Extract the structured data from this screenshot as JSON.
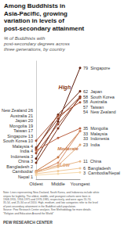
{
  "chart_data": {
    "type": "line",
    "title": "Among Buddhists in\nAsia-Pacific, growing\nvariation in levels of\npost-secondary attainment",
    "subtitle": "% of Buddhists with\npost-secondary degrees across\nthree generations, by country",
    "note": "Note: Lines representing New Zealand, South Korea, and Indonesia include white\nstripes for legibility. The oldest, middle, and youngest cohorts were born in\n1908-1955, 1956-1975 and 1976-1985, respectively, and were ages 55-74,\n35-54, and 25-34 as of 2010. High, medium, and low categories refer to the level\nof post-secondary attainment in the Buddhist adult population.\nSource: Pew Research Center analysis. See Methodology for more details.\n\"Religion and Education Around the World\"",
    "footer": "PEW RESEARCH CENTER",
    "categories": [
      "Oldest",
      "Middle",
      "Youngest"
    ],
    "ylim": [
      -2,
      84
    ],
    "tick_labels": "x",
    "marker": "circle",
    "series": [
      {
        "name": "Singapore",
        "color": "#5C1A08",
        "values": [
          13,
          40,
          79
        ],
        "value_labels": [
          "Singapore 13",
          null,
          "79  Singapore"
        ]
      },
      {
        "name": "Japan",
        "color": "#6B2610",
        "values": [
          20,
          45,
          62
        ],
        "value_labels": [
          "Japan 20",
          null,
          "62  Japan"
        ]
      },
      {
        "name": "South Korea",
        "color": "#7A3018",
        "values": [
          10,
          35,
          58
        ],
        "value_labels": [
          "South Korea 10",
          null,
          "58  South Korea"
        ]
      },
      {
        "name": "Australia",
        "color": "#8A3C22",
        "values": [
          21,
          42,
          58
        ],
        "value_labels": [
          "Australia 21",
          null,
          "58  Australia"
        ]
      },
      {
        "name": "Taiwan",
        "color": "#9A482C",
        "values": [
          17,
          38,
          57
        ],
        "value_labels": [
          "Taiwan 17",
          null,
          "57  Taiwan"
        ]
      },
      {
        "name": "New Zealand",
        "color": "#AA5436",
        "values": [
          26,
          44,
          54
        ],
        "value_labels": [
          "New Zealand 26",
          null,
          "54  New Zealand"
        ]
      },
      {
        "name": "Mongolia",
        "color": "#BA6040",
        "values": [
          19,
          28,
          35
        ],
        "value_labels": [
          "Mongolia 19",
          null,
          "35  Mongolia"
        ]
      },
      {
        "name": "Malaysia",
        "color": "#C87844",
        "values": [
          4,
          14,
          33
        ],
        "value_labels": [
          "Malaysia 4",
          null,
          "33  Malaysia"
        ]
      },
      {
        "name": "Indonesia",
        "color": "#D8906A",
        "values": [
          3,
          10,
          33
        ],
        "value_labels": [
          "Indonesia 3",
          null,
          "33  Indonesia"
        ]
      },
      {
        "name": "India",
        "color": "#E0A878",
        "values": [
          4,
          8,
          23
        ],
        "value_labels": [
          "India 4",
          null,
          "23  India"
        ]
      },
      {
        "name": "China",
        "color": "#E8B888",
        "values": [
          3,
          7,
          11
        ],
        "value_labels": [
          "China 3",
          null,
          "11  China"
        ]
      },
      {
        "name": "Bangladesh",
        "color": "#F0C898",
        "values": [
          2,
          4,
          6
        ],
        "value_labels": [
          "Bangladesh 2",
          null,
          "6  Bangladesh"
        ]
      },
      {
        "name": "Cambodia/Nepal",
        "color": "#F5D8AA",
        "values": [
          1,
          2,
          3
        ],
        "value_labels": [
          "Cambodia/\nNepal 1",
          null,
          "3  Cambodia/Nepal"
        ]
      }
    ],
    "annotations": [
      {
        "text": "High",
        "x": 1.3,
        "y": 65,
        "color": "#8B3A18"
      },
      {
        "text": "Moderate",
        "x": 1.45,
        "y": 20,
        "color": "#C87844"
      },
      {
        "text": "Low",
        "x": 1.3,
        "y": 8.5,
        "color": "#DDA070"
      }
    ]
  }
}
